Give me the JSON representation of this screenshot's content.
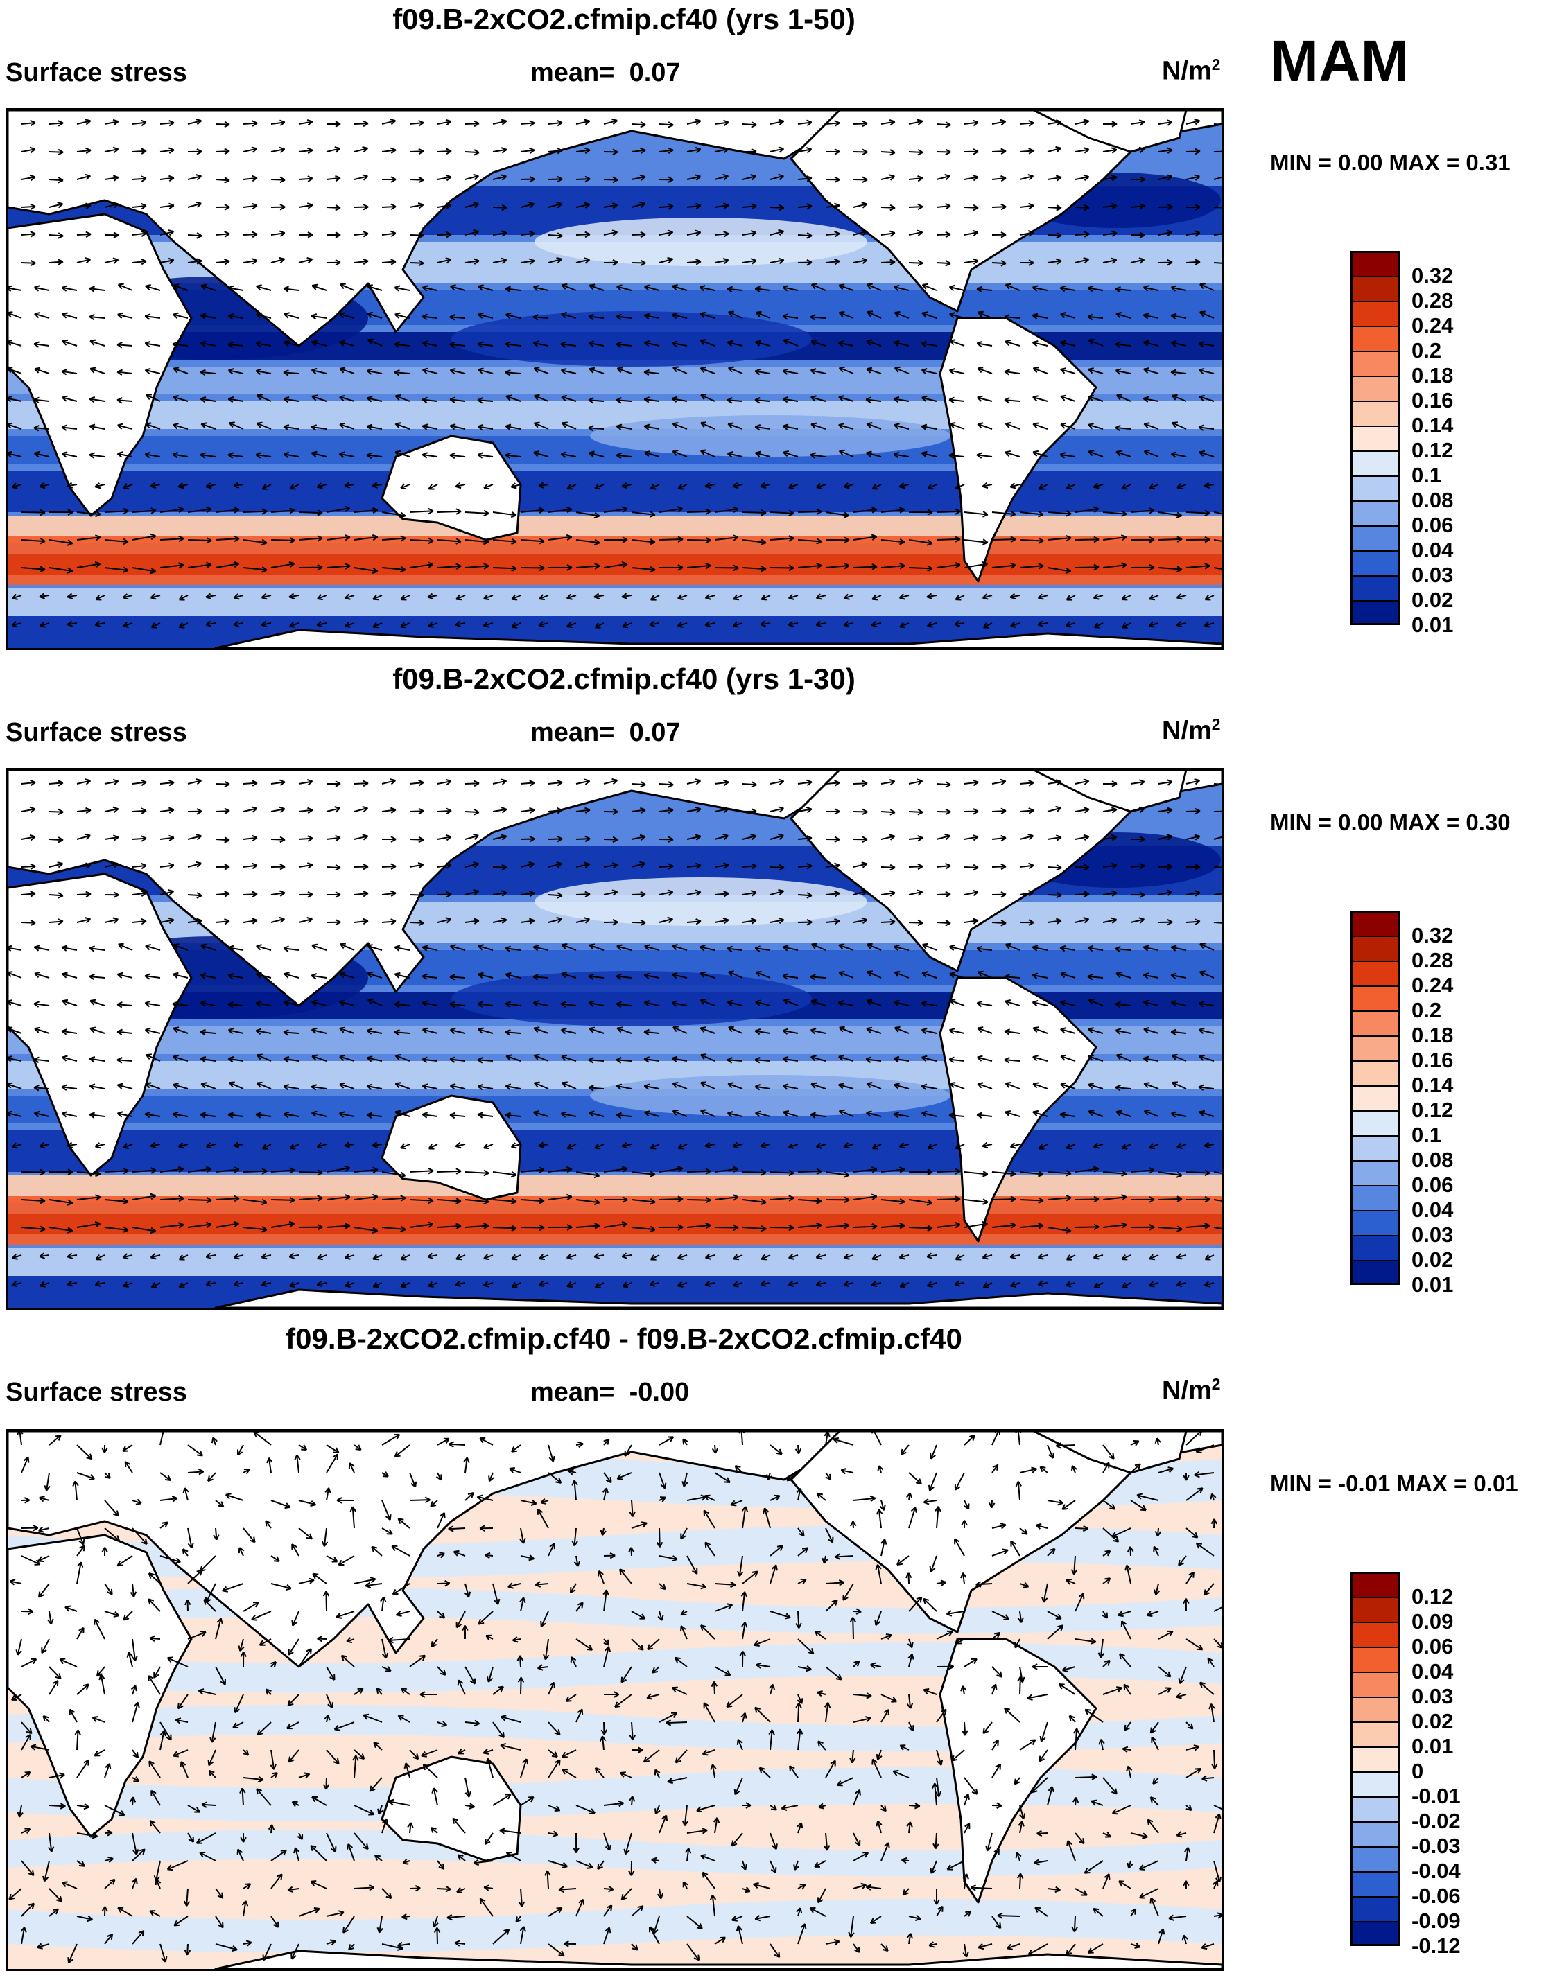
{
  "season": "MAM",
  "units_prefix": "N/m",
  "units_sup": "2",
  "panels": [
    {
      "title": "f09.B-2xCO2.cfmip.cf40 (yrs 1-50)",
      "left": "Surface stress",
      "mean_label": "mean=",
      "mean_value": "0.07",
      "minmax": "MIN =   0.00 MAX =   0.31",
      "kind": "mean",
      "levels": [
        "0.32",
        "0.28",
        "0.24",
        "0.2",
        "0.18",
        "0.16",
        "0.14",
        "0.12",
        "0.1",
        "0.08",
        "0.06",
        "0.04",
        "0.03",
        "0.02",
        "0.01"
      ]
    },
    {
      "title": "f09.B-2xCO2.cfmip.cf40 (yrs 1-30)",
      "left": "Surface stress",
      "mean_label": "mean=",
      "mean_value": "0.07",
      "minmax": "MIN =   0.00 MAX =   0.30",
      "kind": "mean",
      "levels": [
        "0.32",
        "0.28",
        "0.24",
        "0.2",
        "0.18",
        "0.16",
        "0.14",
        "0.12",
        "0.1",
        "0.08",
        "0.06",
        "0.04",
        "0.03",
        "0.02",
        "0.01"
      ]
    },
    {
      "title": "f09.B-2xCO2.cfmip.cf40 - f09.B-2xCO2.cfmip.cf40",
      "left": "Surface stress",
      "mean_label": "mean=",
      "mean_value": "-0.00",
      "minmax": "MIN =  -0.01 MAX =   0.01",
      "kind": "diff",
      "levels": [
        "0.12",
        "0.09",
        "0.06",
        "0.04",
        "0.03",
        "0.02",
        "0.01",
        "0",
        "-0.01",
        "-0.02",
        "-0.03",
        "-0.04",
        "-0.06",
        "-0.09",
        "-0.12"
      ]
    }
  ],
  "colors": {
    "mean": [
      "#8c0000",
      "#b52000",
      "#dd3a10",
      "#f26030",
      "#f78860",
      "#f9aa88",
      "#fcccb0",
      "#fde6d8",
      "#dce9f8",
      "#b5cdf2",
      "#86aaea",
      "#5686e0",
      "#2c60d0",
      "#1036b0",
      "#001a8c"
    ],
    "diff": [
      "#8c0000",
      "#b52000",
      "#dd3a10",
      "#f26030",
      "#f78860",
      "#f9aa88",
      "#fcccb0",
      "#fde6d8",
      "#dce9f8",
      "#b5cdf2",
      "#86aaea",
      "#5686e0",
      "#2c60d0",
      "#1036b0",
      "#001a8c"
    ]
  }
}
